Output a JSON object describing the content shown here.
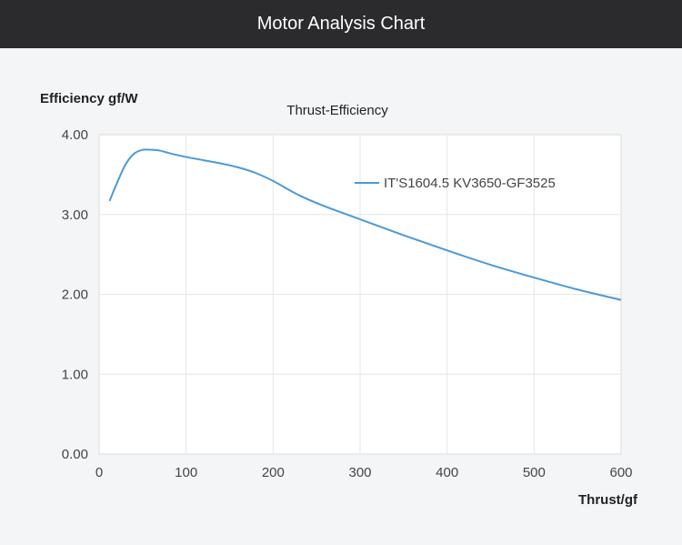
{
  "header": {
    "title": "Motor Analysis Chart"
  },
  "chart_data": {
    "type": "line",
    "title": "Thrust-Efficiency",
    "xlabel": "Thrust/gf",
    "ylabel": "Efficiency gf/W",
    "xlim": [
      0,
      600
    ],
    "ylim": [
      0,
      4
    ],
    "xticks": [
      "0",
      "100",
      "200",
      "300",
      "400",
      "500",
      "600"
    ],
    "yticks": [
      "0.00",
      "1.00",
      "2.00",
      "3.00",
      "4.00"
    ],
    "grid": true,
    "legend_position": "top-right",
    "series": [
      {
        "name": "IT'S1604.5 KV3650-GF3525",
        "color": "#4a9ad8",
        "x": [
          12,
          20,
          30,
          40,
          50,
          60,
          70,
          80,
          100,
          120,
          140,
          160,
          180,
          200,
          230,
          260,
          300,
          350,
          400,
          450,
          500,
          550,
          600
        ],
        "y": [
          3.17,
          3.38,
          3.62,
          3.76,
          3.81,
          3.81,
          3.8,
          3.77,
          3.72,
          3.68,
          3.64,
          3.59,
          3.52,
          3.42,
          3.24,
          3.1,
          2.94,
          2.74,
          2.55,
          2.37,
          2.21,
          2.06,
          1.93
        ]
      }
    ]
  }
}
